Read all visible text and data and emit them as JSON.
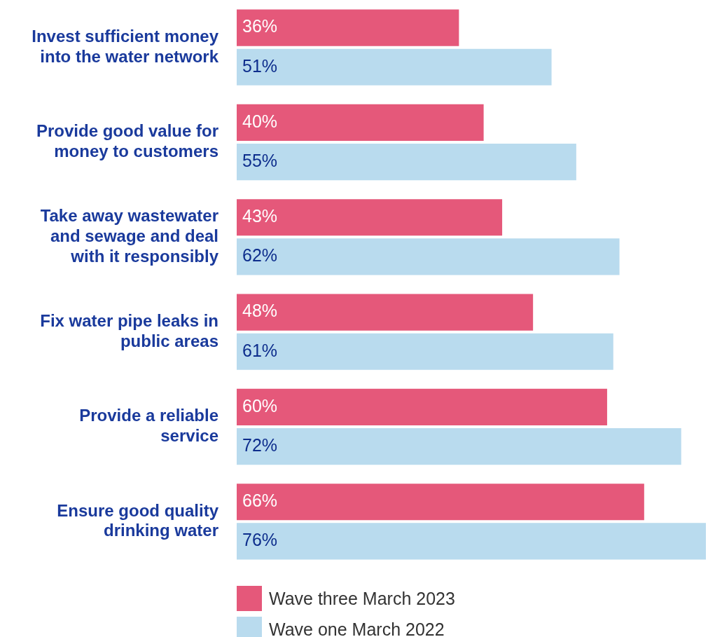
{
  "chart_data": {
    "type": "bar",
    "orientation": "horizontal",
    "legend": "bottom left",
    "grid": false,
    "categories": [
      "Invest sufficient money into the water network",
      "Provide good value for money to customers",
      "Take away wastewater and sewage and deal with it responsibly",
      "Fix water pipe leaks in public areas",
      "Provide a reliable service",
      "Ensure good quality drinking water"
    ],
    "series": [
      {
        "name": "Wave three March 2023",
        "color": "#e5587a",
        "values": [
          36,
          40,
          43,
          48,
          60,
          66
        ],
        "value_labels": [
          "36%",
          "40%",
          "43%",
          "48%",
          "60%",
          "66%"
        ]
      },
      {
        "name": "Wave one March 2022",
        "color": "#b9dbee",
        "values": [
          51,
          55,
          62,
          61,
          72,
          76
        ],
        "value_labels": [
          "51%",
          "55%",
          "62%",
          "61%",
          "72%",
          "76%"
        ]
      }
    ]
  }
}
